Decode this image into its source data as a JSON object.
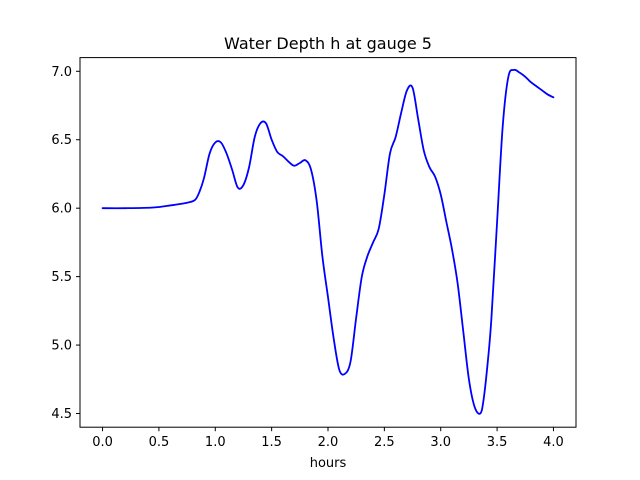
{
  "chart_data": {
    "type": "line",
    "title": "Water Depth h at gauge 5",
    "xlabel": "hours",
    "ylabel": "",
    "xlim": [
      -0.2,
      4.2
    ],
    "ylim": [
      4.4,
      7.1
    ],
    "grid": false,
    "x_ticks": [
      0.0,
      0.5,
      1.0,
      1.5,
      2.0,
      2.5,
      3.0,
      3.5,
      4.0
    ],
    "x_tick_labels": [
      "0.0",
      "0.5",
      "1.0",
      "1.5",
      "2.0",
      "2.5",
      "3.0",
      "3.5",
      "4.0"
    ],
    "y_ticks": [
      4.5,
      5.0,
      5.5,
      6.0,
      6.5,
      7.0
    ],
    "y_tick_labels": [
      "4.5",
      "5.0",
      "5.5",
      "6.0",
      "6.5",
      "7.0"
    ],
    "series": [
      {
        "color": "#0000ff",
        "x": [
          0.0,
          0.2,
          0.45,
          0.6,
          0.75,
          0.82,
          0.86,
          0.9,
          0.95,
          1.0,
          1.05,
          1.1,
          1.15,
          1.2,
          1.25,
          1.3,
          1.35,
          1.4,
          1.45,
          1.5,
          1.55,
          1.6,
          1.65,
          1.7,
          1.75,
          1.8,
          1.85,
          1.9,
          1.95,
          2.0,
          2.05,
          2.1,
          2.15,
          2.2,
          2.25,
          2.3,
          2.35,
          2.4,
          2.45,
          2.5,
          2.55,
          2.6,
          2.65,
          2.7,
          2.75,
          2.8,
          2.85,
          2.9,
          2.95,
          3.0,
          3.05,
          3.1,
          3.15,
          3.2,
          3.25,
          3.3,
          3.35,
          3.38,
          3.42,
          3.45,
          3.5,
          3.55,
          3.6,
          3.65,
          3.7,
          3.75,
          3.8,
          3.85,
          3.9,
          3.95,
          4.0
        ],
        "y": [
          6.0,
          6.0,
          6.005,
          6.02,
          6.04,
          6.06,
          6.12,
          6.22,
          6.4,
          6.48,
          6.48,
          6.4,
          6.28,
          6.15,
          6.17,
          6.3,
          6.52,
          6.62,
          6.62,
          6.5,
          6.41,
          6.38,
          6.34,
          6.31,
          6.33,
          6.35,
          6.28,
          6.05,
          5.65,
          5.35,
          5.05,
          4.82,
          4.79,
          4.88,
          5.2,
          5.5,
          5.65,
          5.75,
          5.85,
          6.1,
          6.4,
          6.52,
          6.7,
          6.86,
          6.88,
          6.65,
          6.42,
          6.3,
          6.23,
          6.1,
          5.9,
          5.7,
          5.45,
          5.1,
          4.75,
          4.55,
          4.5,
          4.6,
          4.9,
          5.2,
          5.9,
          6.6,
          6.96,
          7.01,
          6.99,
          6.96,
          6.92,
          6.89,
          6.86,
          6.83,
          6.81
        ]
      }
    ]
  }
}
